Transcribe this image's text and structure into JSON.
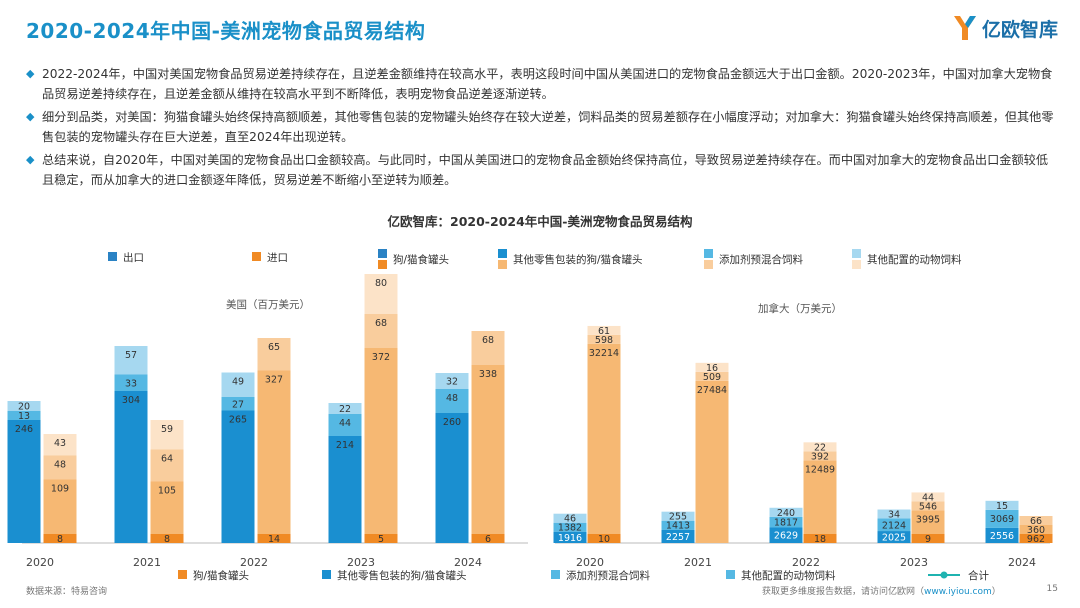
{
  "header": {
    "title": "2020-2024年中国-美洲宠物食品贸易结构",
    "brand": "亿欧智库"
  },
  "bullets": [
    {
      "text": "2022-2024年，中国对美国宠物食品贸易逆差持续存在，且逆差金额维持在较高水平，表明这段时间中国从美国进口的宠物食品金额远大于出口金额。2020-2023年，中国对加拿大宠物食品贸易逆差持续存在，且逆差金额从维持在较高水平到不断降低，表明宠物食品逆差逐渐逆转。"
    },
    {
      "text": "细分到品类，对美国：狗猫食罐头始终保持高额顺差，其他零售包装的宠物罐头始终存在较大逆差，饲料品类的贸易差额存在小幅度浮动；对加拿大：狗猫食罐头始终保持高顺差，但其他零售包装的宠物罐头存在巨大逆差，直至2024年出现逆转。"
    },
    {
      "text": "总结来说，自2020年，中国对美国的宠物食品出口金额较高。与此同时，中国从美国进口的宠物食品金额始终保持高位，导致贸易逆差持续存在。而中国对加拿大的宠物食品出口金额较低且稳定，而从加拿大的进口金额逐年降低，贸易逆差不断缩小至逆转为顺差。"
    }
  ],
  "chart_title": "亿欧智库：2020-2024年中国-美洲宠物食品贸易结构",
  "legend_top": {
    "export": "出口",
    "import": "进口",
    "cat1": "狗/猫食罐头",
    "cat2": "其他零售包装的狗/猫食罐头",
    "cat3": "添加剂预混合饲料",
    "cat4": "其他配置的动物饲料"
  },
  "legend_bottom": {
    "cat1": "狗/猫食罐头",
    "cat2": "其他零售包装的狗/猫食罐头",
    "cat3": "添加剂预混合饲料",
    "cat4": "其他配置的动物饲料",
    "total": "合计"
  },
  "colors": {
    "export": [
      "#2a82c4",
      "#1a8fd0",
      "#55b8e3",
      "#a6d8f0"
    ],
    "import": [
      "#f08a24",
      "#f6b873",
      "#f9cd9d",
      "#fce3c8"
    ],
    "title": "#1a90c8"
  },
  "chart_data": [
    {
      "type": "bar",
      "stacked": true,
      "title": "美国（百万美元）",
      "categories": [
        "2020",
        "2021",
        "2022",
        "2023",
        "2024"
      ],
      "export": {
        "series": [
          {
            "name": "狗/猫食罐头",
            "values": [
              0,
              0,
              0,
              0,
              0
            ]
          },
          {
            "name": "其他零售包装的狗/猫食罐头",
            "values": [
              246,
              304,
              265,
              214,
              260
            ]
          },
          {
            "name": "添加剂预混合饲料",
            "values": [
              13,
              33,
              27,
              44,
              48
            ]
          },
          {
            "name": "其他配置的动物饲料",
            "values": [
              20,
              57,
              49,
              22,
              32
            ]
          }
        ]
      },
      "import": {
        "series": [
          {
            "name": "狗/猫食罐头",
            "values": [
              8,
              8,
              14,
              5,
              6
            ]
          },
          {
            "name": "其他零售包装的狗/猫食罐头",
            "values": [
              109,
              105,
              327,
              372,
              338
            ]
          },
          {
            "name": "添加剂预混合饲料",
            "values": [
              48,
              64,
              65,
              68,
              68
            ]
          },
          {
            "name": "其他配置的动物饲料",
            "values": [
              43,
              59,
              0,
              80,
              0
            ]
          }
        ]
      }
    },
    {
      "type": "bar",
      "stacked": true,
      "title": "加拿大（万美元）",
      "categories": [
        "2020",
        "2021",
        "2022",
        "2023",
        "2024"
      ],
      "export": {
        "series": [
          {
            "name": "其他零售包装的狗/猫食罐头",
            "values": [
              1916,
              2257,
              2629,
              2025,
              2556
            ]
          },
          {
            "name": "添加剂预混合饲料",
            "values": [
              1382,
              1413,
              1817,
              2124,
              3069
            ]
          },
          {
            "name": "其他配置的动物饲料",
            "values": [
              46,
              255,
              240,
              34,
              15
            ]
          }
        ]
      },
      "import": {
        "series": [
          {
            "name": "狗/猫食罐头",
            "values": [
              10,
              0,
              18,
              9,
              962
            ]
          },
          {
            "name": "其他零售包装的狗/猫食罐头",
            "values": [
              32214,
              27484,
              12489,
              3995,
              360
            ]
          },
          {
            "name": "添加剂预混合饲料",
            "values": [
              598,
              509,
              392,
              546,
              66
            ]
          },
          {
            "name": "其他配置的动物饲料",
            "values": [
              61,
              16,
              22,
              44,
              0
            ]
          }
        ]
      }
    }
  ],
  "footer": {
    "source": "数据来源：特易咨询",
    "more": "获取更多维度报告数据，请访问亿欧网（",
    "link": "www.iyiou.com",
    "close": "）",
    "page": "15"
  }
}
